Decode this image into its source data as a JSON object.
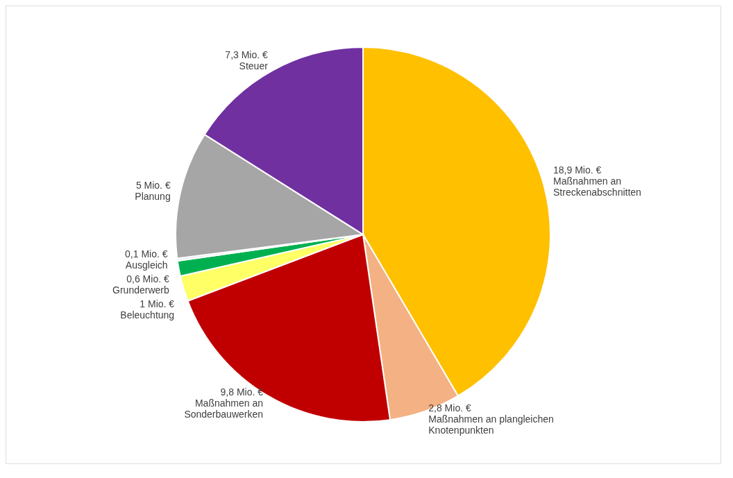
{
  "chart_data": {
    "type": "pie",
    "categories": [
      "Maßnahmen an Streckenabschnitten",
      "Maßnahmen an plangleichen Knotenpunkten",
      "Maßnahmen an Sonderbauwerken",
      "Beleuchtung",
      "Grunderwerb",
      "Ausgleich",
      "Planung",
      "Steuer"
    ],
    "values": [
      18.9,
      2.8,
      9.8,
      1,
      0.6,
      0.1,
      5,
      7.3
    ],
    "colors": [
      "#ffc000",
      "#f4b183",
      "#c00000",
      "#ffff66",
      "#00b050",
      "#dbeef4",
      "#a6a6a6",
      "#7030a0"
    ],
    "value_labels": [
      "18,9 Mio. €",
      "2,8 Mio. €",
      "9,8 Mio. €",
      "1 Mio. €",
      "0,6 Mio. €",
      "0,1 Mio. €",
      "5 Mio. €",
      "7,3 Mio. €"
    ]
  }
}
